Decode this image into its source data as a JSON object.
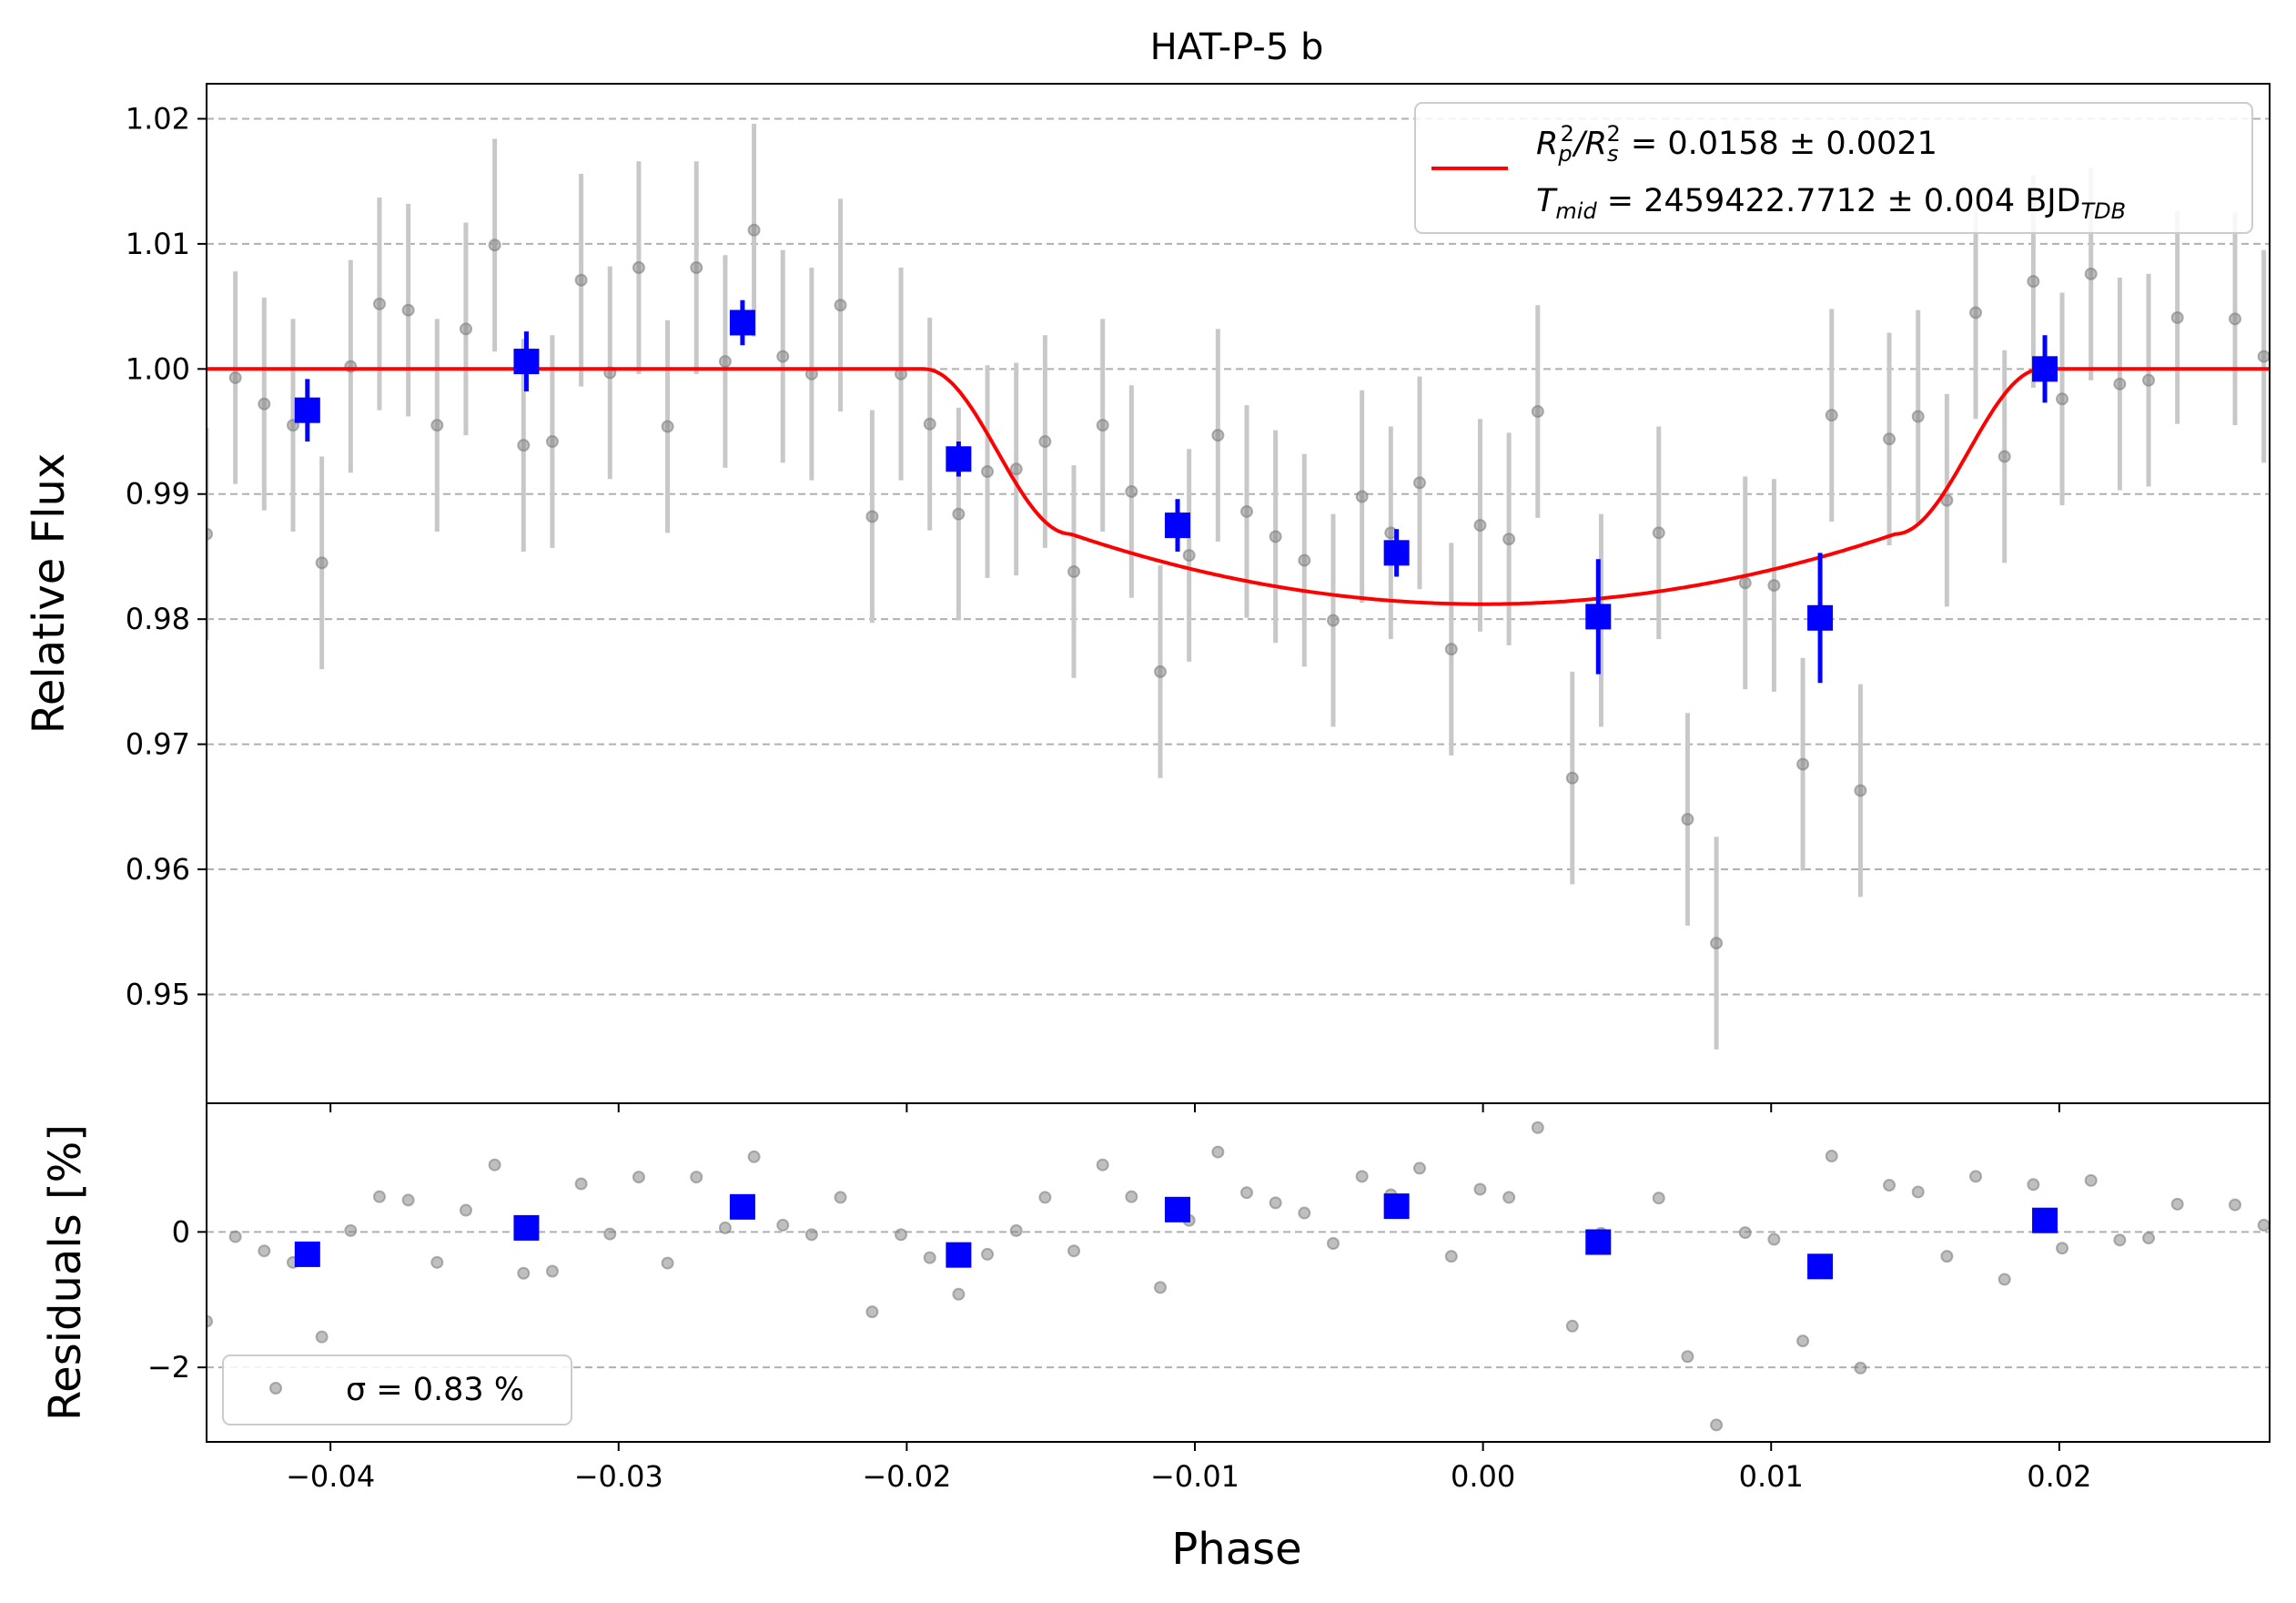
{
  "chart_data": {
    "type": "scatter",
    "title": "HAT-P-5 b",
    "xlabel": "Phase",
    "xlim": [
      -0.0443,
      0.0273
    ],
    "grid": "horizontal dashed",
    "colors": {
      "raw": "#808080",
      "errorbar": "#c8c8c8",
      "binned": "#0000ff",
      "model": "#ff0000",
      "grid": "#b0b0b0"
    },
    "panels": {
      "flux": {
        "ylabel": "Relative Flux",
        "ylim": [
          0.9413,
          1.0228
        ],
        "yticks": [
          "1.02",
          "1.01",
          "1.00",
          "0.99",
          "0.98",
          "0.97",
          "0.96",
          "0.95"
        ],
        "ytick_values": [
          1.02,
          1.01,
          1.0,
          0.99,
          0.98,
          0.97,
          0.96,
          0.95
        ],
        "legend": {
          "placement": "top-right",
          "line1": {
            "pre": "R",
            "sub1": "p",
            "sup1": "2",
            "mid": "/R",
            "sub2": "s",
            "sup2": "2",
            "post": " = 0.0158 ± 0.0021"
          },
          "line2": {
            "pre": "T",
            "sub1": "mid",
            "post": " = 2459422.7712 ± 0.004 BJD",
            "sub2": "TDB"
          }
        }
      },
      "residuals": {
        "ylabel": "Residuals [%]",
        "ylim": [
          -3.1,
          1.9
        ],
        "yticks": [
          "0",
          "−2"
        ],
        "ytick_values": [
          0,
          -2
        ],
        "legend": {
          "placement": "bottom-left",
          "label": "σ = 0.83 %"
        }
      }
    },
    "xticks": [
      "−0.04",
      "−0.03",
      "−0.02",
      "−0.01",
      "0.00",
      "0.01",
      "0.02"
    ],
    "xtick_values": [
      -0.04,
      -0.03,
      -0.02,
      -0.01,
      0.0,
      0.01,
      0.02
    ],
    "model": {
      "name": "transit model",
      "baseline": 1.0,
      "depth_min": 0.9812,
      "t1": -0.0194,
      "t2": -0.0143,
      "t3": 0.0143,
      "t4": 0.0194
    },
    "raw": {
      "x": [
        -0.0443,
        -0.0433,
        -0.0423,
        -0.0413,
        -0.0403,
        -0.0393,
        -0.0383,
        -0.0373,
        -0.0363,
        -0.0353,
        -0.0343,
        -0.0333,
        -0.0323,
        -0.0313,
        -0.0303,
        -0.0293,
        -0.0283,
        -0.0273,
        -0.0263,
        -0.0253,
        -0.0243,
        -0.0233,
        -0.0223,
        -0.0212,
        -0.0202,
        -0.0192,
        -0.0182,
        -0.0172,
        -0.0162,
        -0.0152,
        -0.0142,
        -0.0132,
        -0.0122,
        -0.0112,
        -0.0102,
        -0.0092,
        -0.0082,
        -0.0072,
        -0.0062,
        -0.0052,
        -0.0042,
        -0.0032,
        -0.0022,
        -0.0011,
        -0.0001,
        0.0009,
        0.0019,
        0.0031,
        0.0041,
        0.0061,
        0.0071,
        0.0081,
        0.0091,
        0.0101,
        0.0111,
        0.0121,
        0.0131,
        0.0141,
        0.0151,
        0.0161,
        0.0171,
        0.0181,
        0.0191,
        0.0201,
        0.0211,
        0.0221,
        0.0231,
        0.0241,
        0.0261,
        0.0271
      ],
      "y": [
        0.9868,
        0.9993,
        0.9972,
        0.9955,
        0.9845,
        1.0002,
        1.0052,
        1.0047,
        0.9955,
        1.0032,
        1.0099,
        0.9939,
        0.9942,
        1.0071,
        0.9997,
        1.0081,
        0.9954,
        1.0081,
        1.0006,
        1.0111,
        1.001,
        0.9996,
        1.0051,
        0.9882,
        0.9996,
        0.9956,
        0.9884,
        0.9918,
        0.992,
        0.9942,
        0.9838,
        0.9955,
        0.9902,
        0.9758,
        0.9851,
        0.9947,
        0.9886,
        0.9866,
        0.9847,
        0.9799,
        0.9898,
        0.9869,
        0.9909,
        0.9776,
        0.9875,
        0.9864,
        0.9966,
        0.9673,
        0.9799,
        0.9869,
        0.964,
        0.9541,
        0.9829,
        0.9827,
        0.9684,
        0.9963,
        0.9663,
        0.9944,
        0.9962,
        0.9895,
        1.0045,
        0.993,
        1.007,
        0.9976,
        1.0076,
        0.9988,
        0.9991,
        1.0041,
        1.004,
        1.001
      ],
      "yerr": [
        0.0085,
        0.0085,
        0.0085,
        0.0085,
        0.0085,
        0.0085,
        0.0085,
        0.0085,
        0.0085,
        0.0085,
        0.0085,
        0.0085,
        0.0085,
        0.0085,
        0.0085,
        0.0085,
        0.0085,
        0.0085,
        0.0085,
        0.0085,
        0.0085,
        0.0085,
        0.0085,
        0.0085,
        0.0085,
        0.0085,
        0.0085,
        0.0085,
        0.0085,
        0.0085,
        0.0085,
        0.0085,
        0.0085,
        0.0085,
        0.0085,
        0.0085,
        0.0085,
        0.0085,
        0.0085,
        0.0085,
        0.0085,
        0.0085,
        0.0085,
        0.0085,
        0.0085,
        0.0085,
        0.0085,
        0.0085,
        0.0085,
        0.0085,
        0.0085,
        0.0085,
        0.0085,
        0.0085,
        0.0085,
        0.0085,
        0.0085,
        0.0085,
        0.0085,
        0.0085,
        0.0085,
        0.0085,
        0.0085,
        0.0085,
        0.0085,
        0.0085,
        0.0085,
        0.0085,
        0.0085,
        0.0085
      ],
      "residuals": [
        -1.32,
        -0.07,
        -0.28,
        -0.45,
        -1.55,
        0.02,
        0.52,
        0.47,
        -0.45,
        0.32,
        0.99,
        -0.61,
        -0.58,
        0.71,
        -0.03,
        0.81,
        -0.46,
        0.81,
        0.06,
        1.11,
        0.1,
        -0.04,
        0.51,
        -1.18,
        -0.04,
        -0.38,
        -0.92,
        -0.33,
        0.02,
        0.51,
        -0.28,
        0.99,
        0.52,
        -0.82,
        0.17,
        1.18,
        0.58,
        0.43,
        0.28,
        -0.17,
        0.82,
        0.55,
        0.94,
        -0.36,
        0.63,
        0.51,
        1.54,
        -1.39,
        -0.02,
        0.5,
        -1.84,
        -2.85,
        -0.01,
        -0.11,
        -1.61,
        1.12,
        -2.01,
        0.69,
        0.59,
        -0.36,
        0.82,
        -0.7,
        0.7,
        -0.24,
        0.76,
        -0.12,
        -0.09,
        0.41,
        0.4,
        0.1
      ]
    },
    "binned": {
      "x": [
        -0.0408,
        -0.0332,
        -0.0257,
        -0.0182,
        -0.0106,
        -0.003,
        0.004,
        0.0117,
        0.0195
      ],
      "y": [
        0.9967,
        1.0006,
        1.0037,
        0.9928,
        0.9875,
        0.9853,
        0.9802,
        0.9801,
        1.0
      ],
      "yerr": [
        0.0025,
        0.0024,
        0.0018,
        0.0014,
        0.0021,
        0.0019,
        0.0046,
        0.0052,
        0.0027
      ],
      "residuals": [
        -0.33,
        0.06,
        0.37,
        -0.34,
        0.33,
        0.38,
        -0.15,
        -0.51,
        0.17
      ]
    }
  }
}
